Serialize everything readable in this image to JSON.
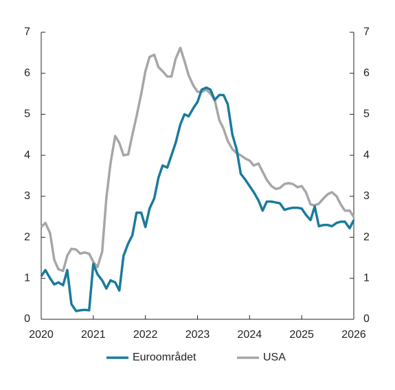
{
  "chart_data": {
    "type": "line",
    "x": [
      2020,
      2020.08,
      2020.17,
      2020.25,
      2020.33,
      2020.42,
      2020.5,
      2020.58,
      2020.67,
      2020.75,
      2020.83,
      2020.92,
      2021,
      2021.08,
      2021.17,
      2021.25,
      2021.33,
      2021.42,
      2021.5,
      2021.58,
      2021.67,
      2021.75,
      2021.83,
      2021.92,
      2022,
      2022.08,
      2022.17,
      2022.25,
      2022.33,
      2022.42,
      2022.5,
      2022.58,
      2022.67,
      2022.75,
      2022.83,
      2022.92,
      2023,
      2023.08,
      2023.17,
      2023.25,
      2023.33,
      2023.42,
      2023.5,
      2023.58,
      2023.67,
      2023.75,
      2023.83,
      2023.92,
      2024,
      2024.08,
      2024.17,
      2024.25,
      2024.33,
      2024.42,
      2024.5,
      2024.58,
      2024.67,
      2024.75,
      2024.83,
      2024.92,
      2025,
      2025.08,
      2025.17,
      2025.25,
      2025.33,
      2025.42,
      2025.5,
      2025.58,
      2025.67,
      2025.75,
      2025.83,
      2025.92,
      2026
    ],
    "series": [
      {
        "name": "Euroområdet",
        "color": "#1a7a9c",
        "values": [
          1.05,
          1.2,
          1.0,
          0.85,
          0.9,
          0.83,
          1.2,
          0.37,
          0.2,
          0.22,
          0.23,
          0.22,
          1.35,
          1.1,
          0.95,
          0.75,
          0.95,
          0.9,
          0.7,
          1.55,
          1.85,
          2.05,
          2.6,
          2.6,
          2.25,
          2.7,
          2.95,
          3.45,
          3.75,
          3.7,
          4.0,
          4.3,
          4.75,
          5.0,
          4.95,
          5.15,
          5.3,
          5.6,
          5.65,
          5.6,
          5.35,
          5.47,
          5.47,
          5.25,
          4.5,
          4.15,
          3.55,
          3.4,
          3.25,
          3.1,
          2.9,
          2.65,
          2.87,
          2.87,
          2.85,
          2.83,
          2.67,
          2.7,
          2.72,
          2.72,
          2.7,
          2.55,
          2.42,
          2.75,
          2.27,
          2.3,
          2.3,
          2.27,
          2.35,
          2.38,
          2.38,
          2.22,
          2.42
        ]
      },
      {
        "name": "USA",
        "color": "#a6a6a6",
        "values": [
          2.25,
          2.35,
          2.1,
          1.45,
          1.22,
          1.18,
          1.55,
          1.72,
          1.7,
          1.6,
          1.63,
          1.6,
          1.4,
          1.27,
          1.65,
          2.95,
          3.8,
          4.47,
          4.3,
          4.0,
          4.02,
          4.5,
          4.95,
          5.5,
          6.05,
          6.4,
          6.45,
          6.15,
          6.05,
          5.92,
          5.92,
          6.35,
          6.62,
          6.3,
          5.95,
          5.7,
          5.55,
          5.55,
          5.6,
          5.5,
          5.35,
          4.85,
          4.65,
          4.35,
          4.15,
          4.05,
          4.0,
          3.92,
          3.87,
          3.75,
          3.8,
          3.6,
          3.4,
          3.25,
          3.18,
          3.2,
          3.3,
          3.32,
          3.3,
          3.22,
          3.25,
          3.1,
          2.8,
          2.78,
          2.82,
          2.95,
          3.05,
          3.1,
          3.0,
          2.8,
          2.65,
          2.65,
          2.5
        ]
      }
    ],
    "xlim": [
      2020,
      2026
    ],
    "xticks": [
      2020,
      2021,
      2022,
      2023,
      2024,
      2025,
      2026
    ],
    "ylim": [
      0,
      7
    ],
    "yticks": [
      0,
      1,
      2,
      3,
      4,
      5,
      6,
      7
    ],
    "y2lim": [
      0,
      7
    ],
    "y2ticks": [
      0,
      1,
      2,
      3,
      4,
      5,
      6,
      7
    ]
  }
}
